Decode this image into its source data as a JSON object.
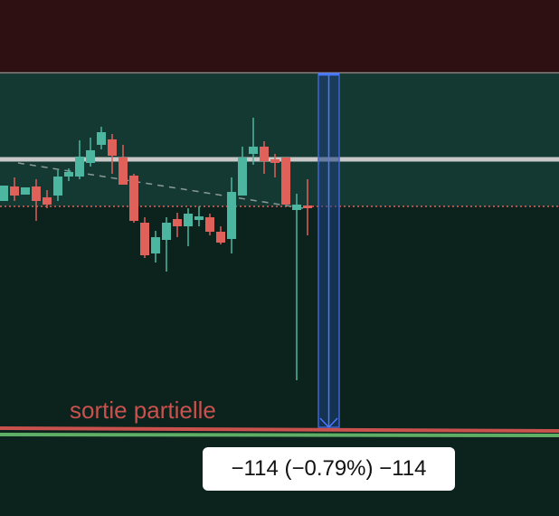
{
  "annotation": "sortie partielle",
  "measure_label": "−114 (−0.79%) −114"
}
